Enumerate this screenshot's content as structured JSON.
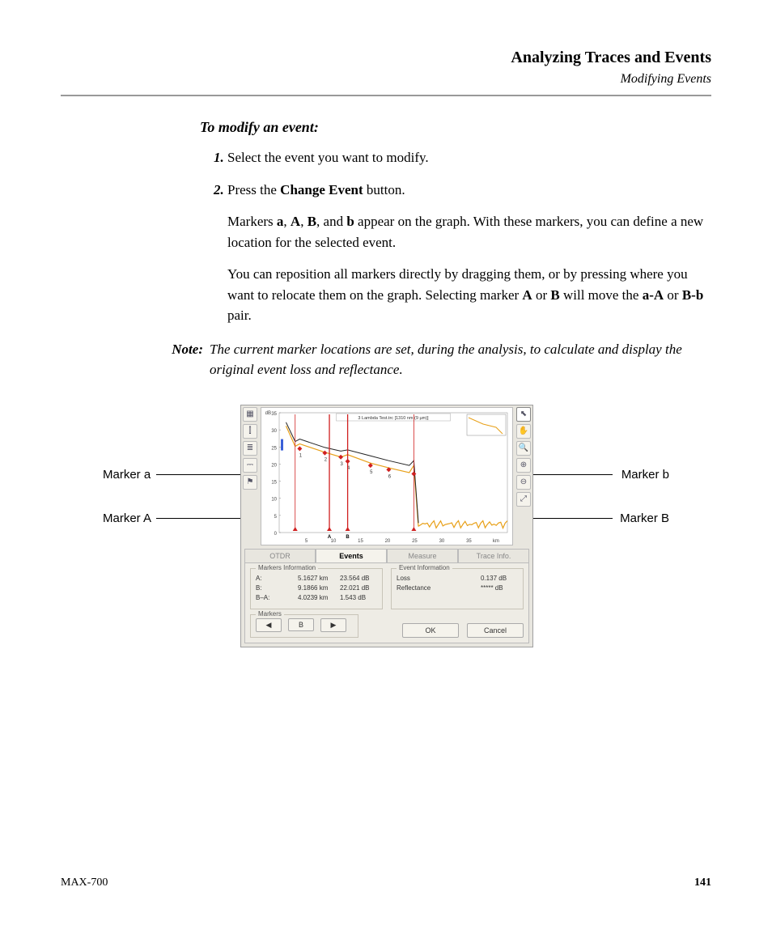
{
  "header": {
    "title": "Analyzing Traces and Events",
    "subtitle": "Modifying Events"
  },
  "section_title": "To modify an event:",
  "steps": {
    "s1": "Select the event you want to modify.",
    "s2_pre": "Press the ",
    "s2_btn": "Change Event",
    "s2_post": " button.",
    "s2_p1a": "Markers ",
    "s2_m_a": "a",
    "s2_c1": ", ",
    "s2_m_A": "A",
    "s2_c2": ", ",
    "s2_m_B": "B",
    "s2_c3": ", and ",
    "s2_m_b": "b",
    "s2_p1b": " appear on the graph. With these markers, you can define a new location for the selected event.",
    "s2_p2a": "You can reposition all markers directly by dragging them, or by pressing where you want to relocate them on the graph. Selecting marker ",
    "s2_p2_A": "A",
    "s2_p2_or": " or ",
    "s2_p2_B": "B",
    "s2_p2b": " will move the ",
    "s2_p2_aA": "a-A",
    "s2_p2_or2": " or ",
    "s2_p2_Bb": "B-b",
    "s2_p2c": " pair."
  },
  "note": {
    "label": "Note:",
    "text": "The current marker locations are set, during the analysis, to calculate and display the original event loss and reflectance."
  },
  "callouts": {
    "ma": "Marker a",
    "mA": "Marker A",
    "mb": "Marker b",
    "mB": "Marker B"
  },
  "app": {
    "chart_title": "3 Lambda Test.trc [1310 nm (9 µm)]",
    "y_label": "dB",
    "y_ticks": [
      "35",
      "30",
      "25",
      "20",
      "15",
      "10",
      "5",
      "0"
    ],
    "x_ticks": [
      "5",
      "10",
      "15",
      "20",
      "25",
      "30",
      "35",
      "km"
    ],
    "axis_markers": {
      "A": "A",
      "B": "B"
    },
    "trace_points": [
      [
        0.03,
        0.11
      ],
      [
        0.07,
        0.28
      ],
      [
        0.09,
        0.26
      ],
      [
        0.2,
        0.33
      ],
      [
        0.27,
        0.37
      ],
      [
        0.3,
        0.35
      ],
      [
        0.4,
        0.42
      ],
      [
        0.48,
        0.46
      ],
      [
        0.57,
        0.5
      ],
      [
        0.59,
        0.44
      ],
      [
        0.61,
        0.95
      ]
    ],
    "trace2_points": [
      [
        0.03,
        0.08
      ],
      [
        0.07,
        0.24
      ],
      [
        0.09,
        0.22
      ],
      [
        0.2,
        0.29
      ],
      [
        0.27,
        0.32
      ],
      [
        0.3,
        0.31
      ],
      [
        0.4,
        0.36
      ],
      [
        0.48,
        0.4
      ],
      [
        0.57,
        0.44
      ],
      [
        0.59,
        0.4
      ],
      [
        0.61,
        0.92
      ]
    ],
    "noise_start_x": 0.61,
    "noise_y": 0.93,
    "event_x": [
      0.09,
      0.2,
      0.27,
      0.3,
      0.4,
      0.48,
      0.59
    ],
    "event_labels": [
      "1",
      "2",
      "3",
      "4",
      "5",
      "6"
    ],
    "marker_lines": {
      "a": 0.07,
      "A": 0.22,
      "B": 0.3,
      "b": 0.59
    },
    "colors": {
      "trace1": "#e8a018",
      "trace2": "#222222",
      "marker": "#d02020",
      "mini_border": "#888888",
      "grid": "#dddddd"
    },
    "tabs": {
      "t1": "OTDR",
      "t2": "Events",
      "t3": "Measure",
      "t4": "Trace Info."
    },
    "markers_info": {
      "legend": "Markers Information",
      "rows": [
        {
          "k": "A:",
          "v1": "5.1627 km",
          "v2": "23.564 dB"
        },
        {
          "k": "B:",
          "v1": "9.1866 km",
          "v2": "22.021 dB"
        },
        {
          "k": "B–A:",
          "v1": "4.0239 km",
          "v2": "1.543 dB"
        }
      ]
    },
    "event_info": {
      "legend": "Event Information",
      "rows": [
        {
          "k": "Loss",
          "v": "0.137 dB"
        },
        {
          "k": "Reflectance",
          "v": "***** dB"
        }
      ]
    },
    "markers_ctrl": {
      "legend": "Markers",
      "prev": "◀",
      "cur": "B",
      "next": "▶"
    },
    "buttons": {
      "ok": "OK",
      "cancel": "Cancel"
    },
    "tool_icons": {
      "left": [
        "▦",
        "⫿",
        "≣",
        "⎓",
        "⚑"
      ],
      "right": [
        "⬉",
        "✋",
        "🔍",
        "⊕",
        "⊖",
        "⤢"
      ]
    }
  },
  "footer": {
    "model": "MAX-700",
    "page": "141"
  }
}
